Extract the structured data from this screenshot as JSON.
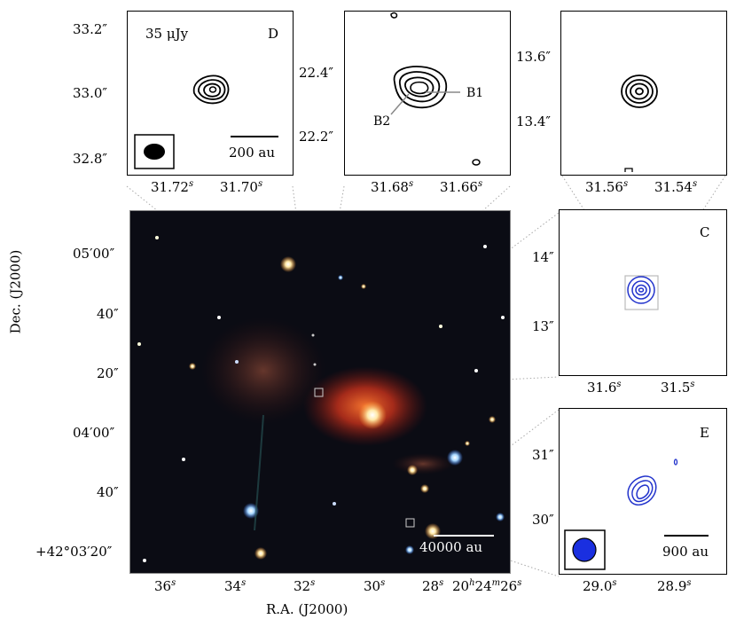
{
  "axes": {
    "main_x_label": "R.A. (J2000)",
    "main_y_label": "Dec. (J2000)",
    "main_x_ticks": [
      "36s",
      "34s",
      "32s",
      "30s",
      "28s",
      "20h24m26s"
    ],
    "main_y_ticks": [
      "05′00″",
      "40″",
      "20″",
      "04′00″",
      "40″",
      "+42°03′20″"
    ]
  },
  "main_image": {
    "scale_bar_label": "40000 au"
  },
  "panel_D": {
    "label": "D",
    "flux_label": "35  μJy",
    "scale_bar_label": "200 au",
    "x_ticks": [
      "31.72s",
      "31.70s"
    ],
    "y_ticks": [
      "33.2″",
      "33.0″",
      "32.8″"
    ]
  },
  "panel_B": {
    "label_b1": "B1",
    "label_b2": "B2",
    "x_ticks": [
      "31.68s",
      "31.66s"
    ],
    "y_ticks": [
      "22.4″",
      "22.2″"
    ]
  },
  "panel_top_right": {
    "x_ticks": [
      "31.56s",
      "31.54s"
    ],
    "y_ticks": [
      "13.6″",
      "13.4″"
    ]
  },
  "panel_C": {
    "label": "C",
    "x_ticks": [
      "31.6s",
      "31.5s"
    ],
    "y_ticks": [
      "14″",
      "13″"
    ]
  },
  "panel_E": {
    "label": "E",
    "scale_bar_label": "900 au",
    "x_ticks": [
      "29.0s",
      "28.9s"
    ],
    "y_ticks": [
      "31″",
      "30″"
    ]
  },
  "colors": {
    "contour_black": "#000000",
    "contour_blue": "#2233cc",
    "beam_blue": "#1a2fe0",
    "nebula_red": "#e0402a"
  }
}
